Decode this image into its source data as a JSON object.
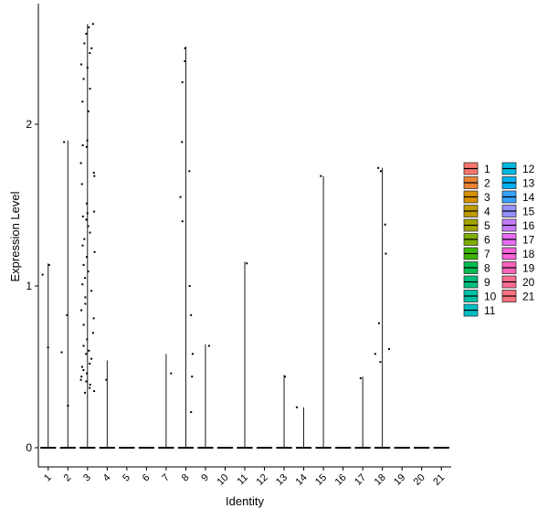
{
  "chart_data": {
    "type": "violin",
    "title": "",
    "xlabel": "Identity",
    "ylabel": "Expression Level",
    "categories": [
      "1",
      "2",
      "3",
      "4",
      "5",
      "6",
      "7",
      "8",
      "9",
      "10",
      "11",
      "12",
      "13",
      "14",
      "15",
      "16",
      "17",
      "18",
      "19",
      "20",
      "21"
    ],
    "ylim": [
      -0.12,
      2.75
    ],
    "yticks": [
      0,
      1,
      2
    ],
    "grid": false,
    "legend_position": "right",
    "series": [
      {
        "name": "1",
        "color": "#F8766D",
        "max": 1.14,
        "points": [
          0.62,
          1.13,
          1.07
        ]
      },
      {
        "name": "2",
        "color": "#EA8331",
        "max": 1.9,
        "points": [
          1.89,
          0.82,
          0.26,
          0.59
        ]
      },
      {
        "name": "3",
        "color": "#D89000",
        "max": 2.62,
        "points": [
          2.62,
          2.6,
          2.56,
          2.5,
          2.47,
          2.44,
          2.37,
          2.35,
          2.28,
          2.22,
          2.14,
          2.08,
          1.9,
          1.87,
          1.76,
          1.7,
          1.68,
          1.63,
          1.51,
          1.46,
          1.43,
          1.41,
          1.37,
          1.33,
          1.29,
          1.25,
          1.21,
          1.18,
          1.13,
          1.09,
          1.05,
          1.01,
          0.97,
          0.93,
          0.89,
          0.85,
          0.8,
          0.76,
          0.71,
          0.67,
          0.63,
          0.6,
          0.58,
          0.55,
          0.52,
          0.5,
          0.48,
          0.46,
          0.44,
          0.42,
          0.41,
          0.39,
          0.37,
          0.35,
          0.34,
          1.86,
          1.45
        ]
      },
      {
        "name": "4",
        "color": "#C09B00",
        "max": 0.54,
        "points": [
          0.42
        ]
      },
      {
        "name": "5",
        "color": "#A3A500",
        "max": 0,
        "points": []
      },
      {
        "name": "6",
        "color": "#7CAE00",
        "max": 0,
        "points": []
      },
      {
        "name": "7",
        "color": "#39B600",
        "max": 0.58,
        "points": [
          0.46
        ]
      },
      {
        "name": "8",
        "color": "#00BB4E",
        "max": 2.48,
        "points": [
          2.47,
          2.39,
          2.26,
          1.89,
          1.71,
          1.55,
          1.4,
          1.0,
          0.82,
          0.58,
          0.44,
          0.22
        ]
      },
      {
        "name": "9",
        "color": "#00BF7D",
        "max": 0.64,
        "points": [
          0.63
        ]
      },
      {
        "name": "10",
        "color": "#00C1A3",
        "max": 0,
        "points": []
      },
      {
        "name": "11",
        "color": "#00BFC4",
        "max": 1.15,
        "points": [
          1.14
        ]
      },
      {
        "name": "12",
        "color": "#00BAE0",
        "max": 0,
        "points": []
      },
      {
        "name": "13",
        "color": "#00B0F6",
        "max": 0.45,
        "points": [
          0.44
        ]
      },
      {
        "name": "14",
        "color": "#35A2FF",
        "max": 0.25,
        "points": [
          0.25
        ]
      },
      {
        "name": "15",
        "color": "#9590FF",
        "max": 1.68,
        "points": [
          1.68
        ]
      },
      {
        "name": "16",
        "color": "#C77CFF",
        "max": 0,
        "points": []
      },
      {
        "name": "17",
        "color": "#E76BF3",
        "max": 0.44,
        "points": [
          0.43
        ]
      },
      {
        "name": "18",
        "color": "#FA62DB",
        "max": 1.73,
        "points": [
          1.73,
          1.71,
          1.38,
          1.2,
          0.77,
          0.61,
          0.58,
          0.53
        ]
      },
      {
        "name": "19",
        "color": "#FF62BC",
        "max": 0,
        "points": []
      },
      {
        "name": "20",
        "color": "#FF6C91",
        "max": 0,
        "points": []
      },
      {
        "name": "21",
        "color": "#FC717F",
        "max": 0,
        "points": []
      }
    ]
  }
}
